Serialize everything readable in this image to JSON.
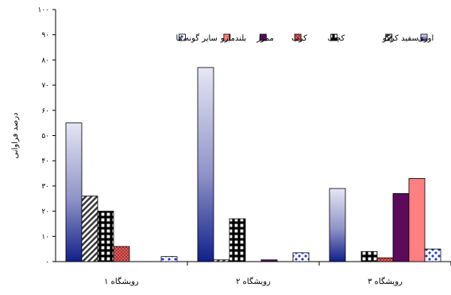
{
  "chart_data": {
    "type": "bar",
    "ylabel": "درصد فراوانی",
    "ylim": [
      0,
      100
    ],
    "yticks": [
      0,
      10,
      20,
      30,
      40,
      50,
      60,
      70,
      80,
      90,
      100
    ],
    "ytick_labels": [
      "۰",
      "۱۰",
      "۲۰",
      "۳۰",
      "۴۰",
      "۵۰",
      "۶۰",
      "۷۰",
      "۸۰",
      "۹۰",
      "۱۰۰"
    ],
    "categories": [
      "رویشگاه ۱",
      "رویشگاه ۲",
      "رویشگاه ۳"
    ],
    "legend_position": "top",
    "grid": false,
    "series": [
      {
        "name": "اوری",
        "values": [
          55,
          77,
          29
        ],
        "color": "#8d90c4",
        "pattern": "gradient-blue"
      },
      {
        "name": "سفید کرکو",
        "values": [
          26,
          0.7,
          0
        ],
        "color": "#9a9a9a",
        "pattern": "diagonal-hatch"
      },
      {
        "name": "کچف",
        "values": [
          20,
          17,
          4
        ],
        "color": "#000000",
        "pattern": "grid-black"
      },
      {
        "name": "کرب",
        "values": [
          6,
          0,
          1.5
        ],
        "color": "#d84c4c",
        "pattern": "dotted-red"
      },
      {
        "name": "ممرز",
        "values": [
          0,
          0.7,
          27
        ],
        "color": "#5c0a5c",
        "pattern": "solid"
      },
      {
        "name": "بلندمازو",
        "values": [
          0,
          0,
          33
        ],
        "color": "#ff8080",
        "pattern": "solid"
      },
      {
        "name": "سایر گونه ها",
        "values": [
          2,
          3.5,
          5
        ],
        "color": "#1f3bd6",
        "pattern": "dotted-blue"
      }
    ]
  }
}
